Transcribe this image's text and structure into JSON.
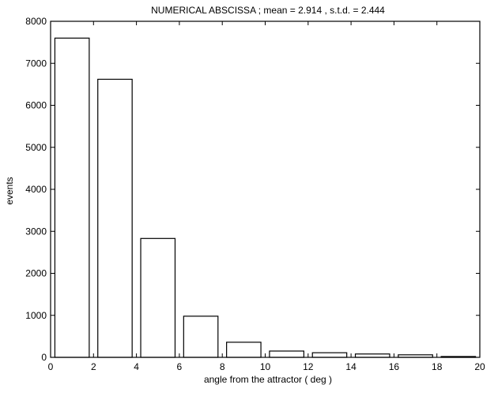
{
  "chart_data": {
    "type": "bar",
    "title": "NUMERICAL ABSCISSA ; mean = 2.914 , s.t.d. = 2.444",
    "xlabel": "angle from the attractor ( deg )",
    "ylabel": "events",
    "xlim": [
      0,
      20
    ],
    "ylim": [
      0,
      8000
    ],
    "x_ticks": [
      0,
      2,
      4,
      6,
      8,
      10,
      12,
      14,
      16,
      18,
      20
    ],
    "y_ticks": [
      0,
      1000,
      2000,
      3000,
      4000,
      5000,
      6000,
      7000,
      8000
    ],
    "bin_width": 2,
    "x": [
      1,
      3,
      5,
      7,
      9,
      11,
      13,
      15,
      17,
      19
    ],
    "values": [
      7600,
      6620,
      2830,
      980,
      360,
      150,
      110,
      80,
      60,
      20
    ],
    "grid": false,
    "legend": false,
    "colors": {
      "bar_fill": "#ffffff",
      "bar_stroke": "#000000",
      "axes": "#000000"
    }
  }
}
